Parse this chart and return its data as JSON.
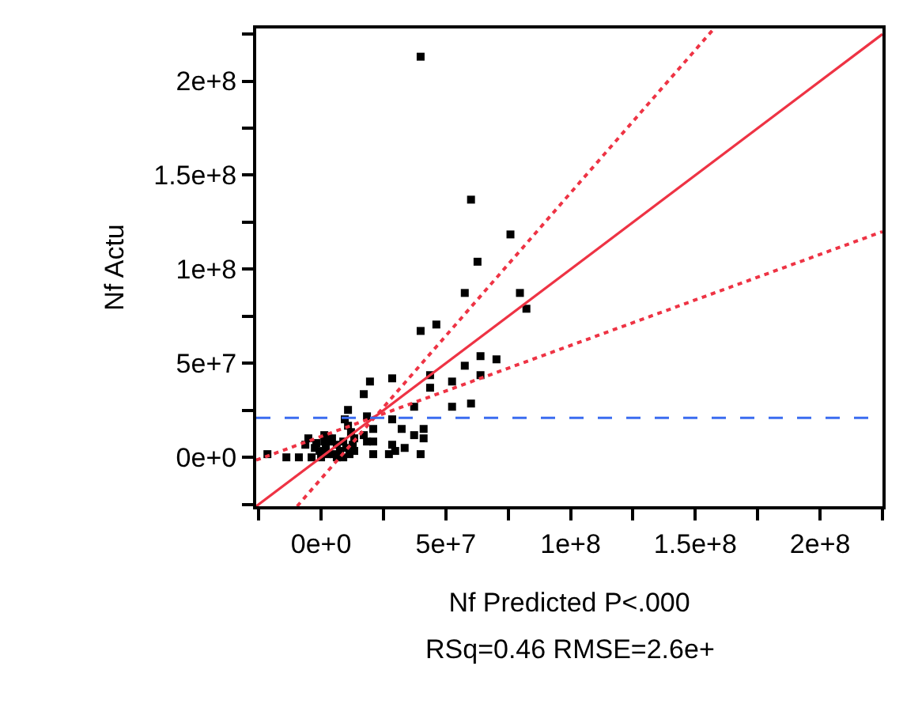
{
  "chart_data": {
    "type": "scatter",
    "xlabel": "Nf Predicted P<.000",
    "ylabel": "Nf Actu",
    "annotations": [
      "RSq=0.46 RMSE=2.6e+"
    ],
    "xlim": [
      -26000000.0,
      225000000.0
    ],
    "ylim": [
      -26000000.0,
      228000000.0
    ],
    "xticks": [
      {
        "value": -25000000.0,
        "label": null
      },
      {
        "value": 0,
        "label": "0e+0"
      },
      {
        "value": 25000000.0,
        "label": null
      },
      {
        "value": 50000000.0,
        "label": "5e+7"
      },
      {
        "value": 75000000.0,
        "label": null
      },
      {
        "value": 100000000.0,
        "label": "1e+8"
      },
      {
        "value": 125000000.0,
        "label": null
      },
      {
        "value": 150000000.0,
        "label": "1.5e+8"
      },
      {
        "value": 175000000.0,
        "label": null
      },
      {
        "value": 200000000.0,
        "label": "2e+8"
      },
      {
        "value": 225000000.0,
        "label": null
      }
    ],
    "yticks": [
      {
        "value": -25000000.0,
        "label": null
      },
      {
        "value": 0,
        "label": "0e+0"
      },
      {
        "value": 25000000.0,
        "label": null
      },
      {
        "value": 50000000.0,
        "label": "5e+7"
      },
      {
        "value": 75000000.0,
        "label": null
      },
      {
        "value": 100000000.0,
        "label": "1e+8"
      },
      {
        "value": 125000000.0,
        "label": null
      },
      {
        "value": 150000000.0,
        "label": "1.5e+8"
      },
      {
        "value": 175000000.0,
        "label": null
      },
      {
        "value": 200000000.0,
        "label": "2e+8"
      },
      {
        "value": 225000000.0,
        "label": null
      }
    ],
    "ref_lines": [
      {
        "axis": "y",
        "value": 21000000.0,
        "color": "#3b6cf0",
        "line_style": "dashed"
      }
    ],
    "series": [
      {
        "marker": "square",
        "color": "#000000",
        "x": [
          57600000.0,
          79700000.0,
          82300000.0,
          39900000.0,
          46200000.0,
          63900000.0,
          70300000.0,
          57600000.0,
          63900000.0,
          43700000.0,
          43700000.0,
          52500000.0,
          28500000.0,
          19600000.0,
          17100000.0,
          37300000.0,
          52500000.0,
          60100000.0,
          10800000.0,
          9500000.0,
          18400000.0,
          20900000.0,
          28500000.0,
          32300000.0,
          41100000.0,
          41100000.0,
          37300000.0,
          28500000.0,
          33500000.0,
          29700000.0,
          27200000.0,
          39900000.0,
          20900000.0,
          20900000.0,
          17100000.0,
          18400000.0,
          10800000.0,
          12000000.0,
          13300000.0,
          -21500000.0,
          -13900000.0,
          -8900000.0,
          -3800000.0,
          -6300000.0,
          -5100000.0,
          1300000.0,
          1300000.0,
          -1900000.0,
          -600000.0,
          1900000.0,
          3800000.0,
          5100000.0,
          6300000.0,
          7600000.0,
          8900000.0,
          10100000.0,
          11400000.0,
          12700000.0,
          13300000.0,
          2500000.0,
          0,
          6300000.0,
          8900000.0,
          4400000.0,
          -2500000.0,
          39900000.0,
          60100000.0,
          75900000.0,
          62700000.0
        ],
        "values": [
          87400000.0,
          87400000.0,
          79000000.0,
          67200000.0,
          70600000.0,
          53800000.0,
          52100000.0,
          48700000.0,
          43700000.0,
          43700000.0,
          37000000.0,
          40300000.0,
          42000000.0,
          40300000.0,
          33600000.0,
          26900000.0,
          26900000.0,
          28600000.0,
          25200000.0,
          20200000.0,
          21800000.0,
          15100000.0,
          20200000.0,
          15100000.0,
          15100000.0,
          10100000.0,
          11800000.0,
          6700000.0,
          5000000.0,
          3400000.0,
          1700000.0,
          1700000.0,
          8400000.0,
          1700000.0,
          11800000.0,
          8400000.0,
          16800000.0,
          13400000.0,
          10100000.0,
          1700000.0,
          0,
          0,
          0,
          6700000.0,
          10100000.0,
          11800000.0,
          8400000.0,
          7600000.0,
          3400000.0,
          5000000.0,
          8400000.0,
          1700000.0,
          6700000.0,
          3400000.0,
          8400000.0,
          5000000.0,
          1700000.0,
          6700000.0,
          3400000.0,
          1700000.0,
          0,
          0,
          0,
          10100000.0,
          5000000.0,
          213000000.0,
          137000000.0,
          118500000.0,
          104000000.0
        ]
      },
      {
        "type": "line",
        "color": "#ee3344",
        "line_style": "solid",
        "x": [
          -26000000.0,
          225000000.0
        ],
        "values": [
          -26000000.0,
          225000000.0
        ]
      },
      {
        "type": "line",
        "color": "#ee3344",
        "line_style": "dotted",
        "x": [
          -9600000.0,
          157500000.0
        ],
        "values": [
          -26000000.0,
          228000000.0
        ]
      },
      {
        "type": "line",
        "color": "#ee3344",
        "line_style": "dotted",
        "x": [
          -26000000.0,
          225000000.0
        ],
        "values": [
          -1500000.0,
          120000000.0
        ]
      }
    ]
  }
}
